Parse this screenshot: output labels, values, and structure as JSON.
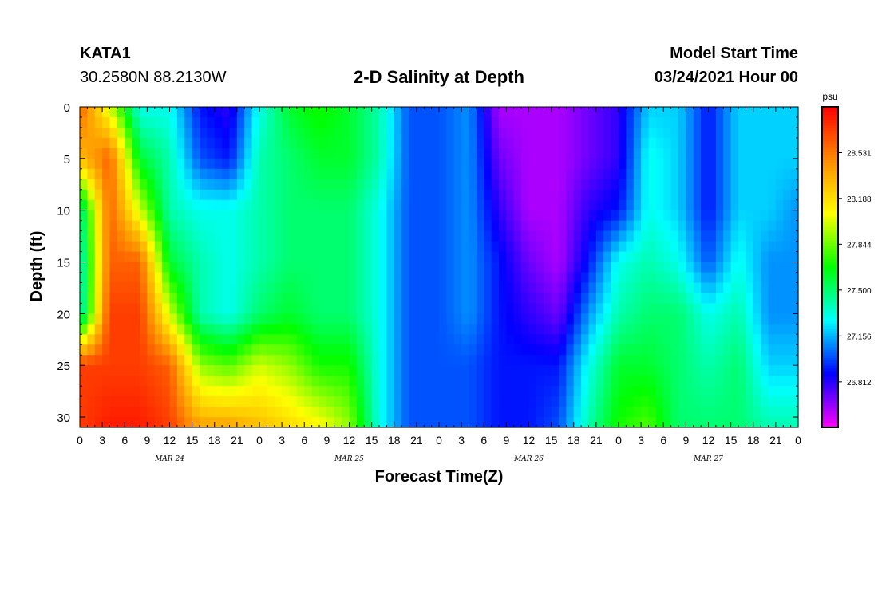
{
  "header": {
    "station": "KATA1",
    "coords": "30.2580N 88.2130W",
    "title": "2-D Salinity at Depth",
    "start_label": "Model Start Time",
    "start_value": "03/24/2021 Hour 00"
  },
  "chart_data": {
    "type": "heatmap",
    "title": "2-D Salinity at Depth",
    "xlabel": "Forecast Time(Z)",
    "ylabel": "Depth (ft)",
    "x_tick_labels": [
      "0",
      "3",
      "6",
      "9",
      "12",
      "15",
      "18",
      "21",
      "0",
      "3",
      "6",
      "9",
      "12",
      "15",
      "18",
      "21",
      "0",
      "3",
      "6",
      "9",
      "12",
      "15",
      "18",
      "21",
      "0",
      "3",
      "6",
      "9",
      "12",
      "15",
      "18",
      "21",
      "0"
    ],
    "day_labels": [
      {
        "label": "MAR 24",
        "hour": 12
      },
      {
        "label": "MAR 25",
        "hour": 36
      },
      {
        "label": "MAR 26",
        "hour": 60
      },
      {
        "label": "MAR 27",
        "hour": 84
      }
    ],
    "xlim_hours": [
      0,
      96
    ],
    "ylim_ft": [
      0,
      31
    ],
    "y_inverted": true,
    "y_ticks": [
      0,
      5,
      10,
      15,
      20,
      25,
      30
    ],
    "colorbar": {
      "unit": "psu",
      "tick_labels": [
        "28.531",
        "28.188",
        "27.844",
        "27.500",
        "27.156",
        "26.812"
      ],
      "tick_values": [
        28.531,
        28.188,
        27.844,
        27.5,
        27.156,
        26.812
      ],
      "range": [
        26.47,
        28.875
      ]
    },
    "field_description": {
      "time_hours": [
        0,
        4,
        8,
        12,
        16,
        20,
        24,
        28,
        32,
        36,
        40,
        44,
        48,
        52,
        56,
        60,
        64,
        68,
        72,
        76,
        80,
        84,
        88,
        92,
        96
      ],
      "depth_ft": [
        0,
        5,
        10,
        15,
        20,
        25,
        31
      ],
      "salinity_psu": [
        [
          28.6,
          28.3,
          27.4,
          27.3,
          27.3,
          28.7,
          28.7
        ],
        [
          28.0,
          28.6,
          28.6,
          28.6,
          28.7,
          28.7,
          28.8
        ],
        [
          27.3,
          27.6,
          28.0,
          28.6,
          28.7,
          28.7,
          28.8
        ],
        [
          27.3,
          27.4,
          27.4,
          27.6,
          28.0,
          28.6,
          28.7
        ],
        [
          26.9,
          27.0,
          27.3,
          27.4,
          27.4,
          27.9,
          28.4
        ],
        [
          26.8,
          26.9,
          27.3,
          27.3,
          27.3,
          27.8,
          28.4
        ],
        [
          27.3,
          27.4,
          27.4,
          27.4,
          27.5,
          28.0,
          28.3
        ],
        [
          27.6,
          27.5,
          27.5,
          27.5,
          27.6,
          27.9,
          28.2
        ],
        [
          27.7,
          27.6,
          27.5,
          27.5,
          27.5,
          27.7,
          28.1
        ],
        [
          27.6,
          27.6,
          27.5,
          27.5,
          27.5,
          27.7,
          27.9
        ],
        [
          27.4,
          27.4,
          27.3,
          27.3,
          27.3,
          27.3,
          27.3
        ],
        [
          27.0,
          27.0,
          27.0,
          27.0,
          27.0,
          27.0,
          27.0
        ],
        [
          27.0,
          27.0,
          27.0,
          27.0,
          27.0,
          27.0,
          27.0
        ],
        [
          27.1,
          27.1,
          27.1,
          27.1,
          27.1,
          27.0,
          27.0
        ],
        [
          26.6,
          26.7,
          26.8,
          26.9,
          26.9,
          26.9,
          26.9
        ],
        [
          26.6,
          26.6,
          26.6,
          26.7,
          26.8,
          26.9,
          26.9
        ],
        [
          26.6,
          26.6,
          26.6,
          26.6,
          26.7,
          26.9,
          27.0
        ],
        [
          26.7,
          26.7,
          26.8,
          26.9,
          27.1,
          27.3,
          27.4
        ],
        [
          26.8,
          26.8,
          26.9,
          27.3,
          27.4,
          27.6,
          27.7
        ],
        [
          27.2,
          27.3,
          27.3,
          27.4,
          27.5,
          27.6,
          27.8
        ],
        [
          27.2,
          27.2,
          27.2,
          27.3,
          27.5,
          27.5,
          27.5
        ],
        [
          26.9,
          26.9,
          26.9,
          27.0,
          27.3,
          27.4,
          27.5
        ],
        [
          27.2,
          27.2,
          27.2,
          27.3,
          27.4,
          27.5,
          27.5
        ],
        [
          27.2,
          27.2,
          27.2,
          27.1,
          27.1,
          27.2,
          27.4
        ],
        [
          27.2,
          27.2,
          27.1,
          27.1,
          27.1,
          27.2,
          27.4
        ]
      ]
    }
  },
  "colors": {
    "axis": "#000000",
    "background": "#ffffff",
    "colormap": [
      "#ff00ff",
      "#0000ff",
      "#00ffff",
      "#00ff00",
      "#ffff00",
      "#ff8c00",
      "#ff0000"
    ]
  }
}
